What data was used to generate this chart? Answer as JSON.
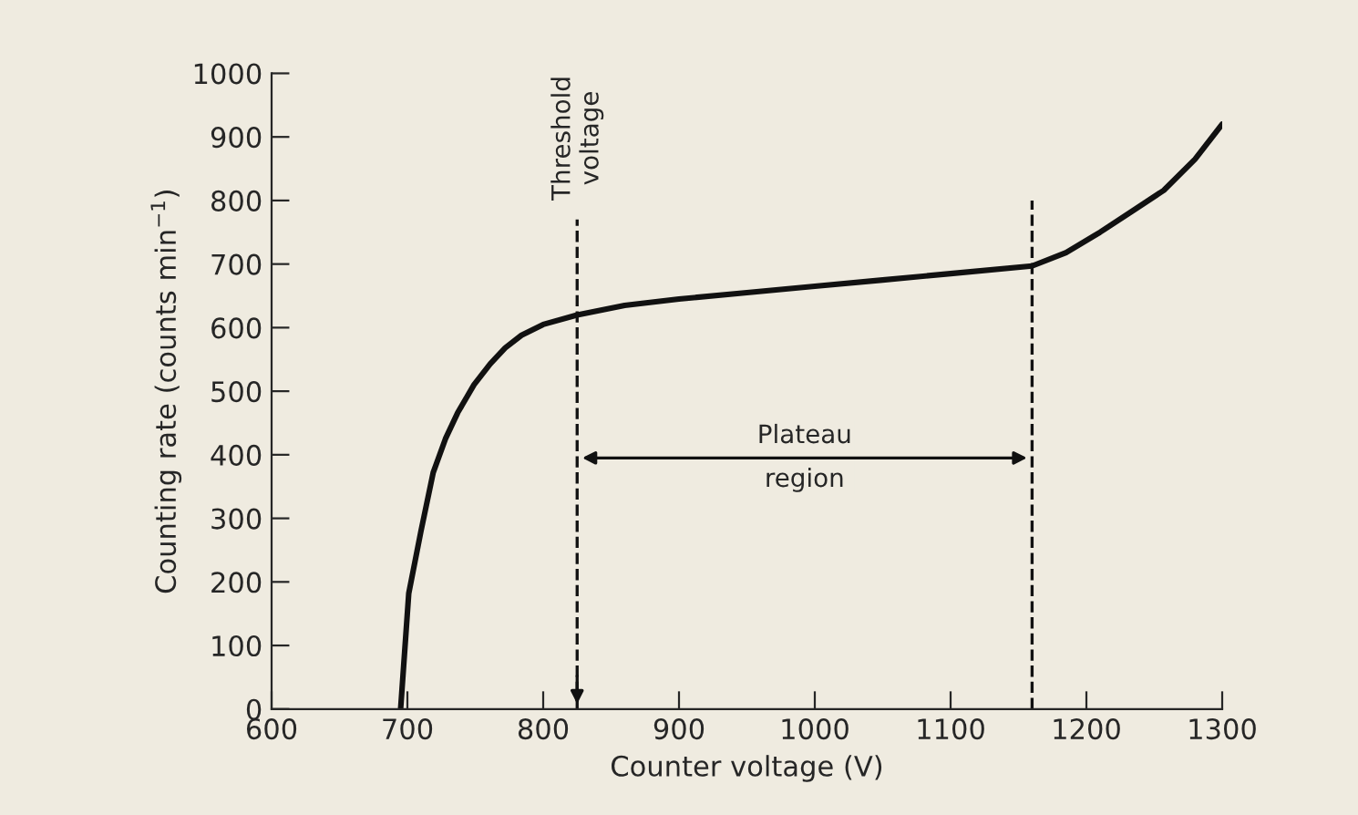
{
  "chart_data": {
    "type": "line",
    "xlabel": "Counter voltage (V)",
    "ylabel": "Counting rate (counts min$^{−1}$)",
    "series": [
      {
        "color": "#111111",
        "x": [
          695,
          701,
          710,
          719,
          728,
          737,
          749,
          761,
          772,
          784,
          800,
          825,
          860,
          900,
          950,
          1000,
          1050,
          1100,
          1160,
          1185,
          1210,
          1235,
          1257,
          1280,
          1300
        ],
        "values": [
          0,
          182,
          280,
          372,
          425,
          466,
          510,
          543,
          568,
          588,
          605,
          620,
          635,
          645,
          655,
          665,
          675,
          685,
          697,
          718,
          750,
          785,
          816,
          865,
          920
        ]
      }
    ],
    "xlim": [
      600,
      1300
    ],
    "ylim": [
      0,
      1000
    ],
    "xticks": [
      600,
      700,
      800,
      900,
      1000,
      1100,
      1200,
      1300
    ],
    "yticks": [
      0,
      100,
      200,
      300,
      400,
      500,
      600,
      700,
      800,
      900,
      1000
    ],
    "ref_lines": [
      {
        "axis": "x",
        "value": 825,
        "label": "Threshold\nvoltage",
        "line_style": "dashed",
        "color": "#111111"
      },
      {
        "axis": "x",
        "value": 1160,
        "line_style": "dashed",
        "color": "#111111"
      }
    ],
    "annotations": [
      "Plateau\nregion"
    ],
    "grid": false,
    "legend": false,
    "line_style": "solid",
    "marker": "none"
  }
}
